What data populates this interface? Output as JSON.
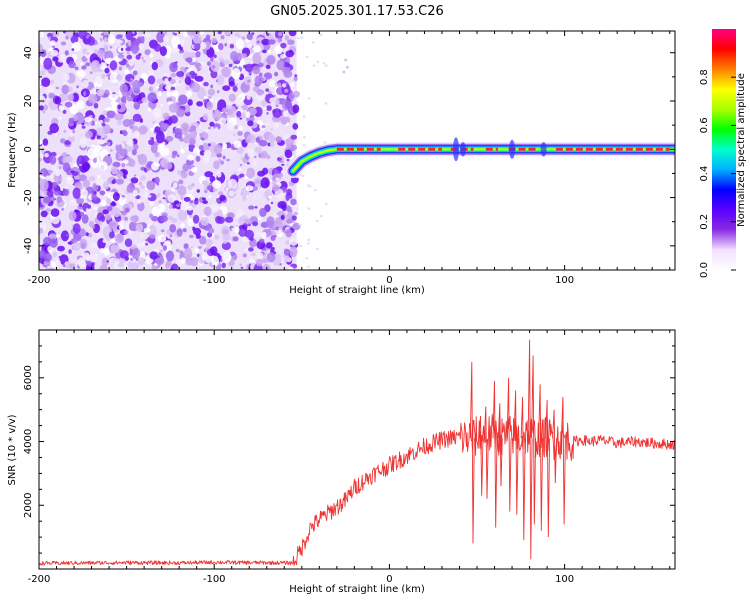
{
  "title": "GN05.2025.301.17.53.C26",
  "chart_data": [
    {
      "type": "heatmap",
      "name": "spectrogram",
      "xlabel": "Height of straight line (km)",
      "ylabel": "Frequency (Hz)",
      "xlim": [
        -200,
        163
      ],
      "ylim": [
        -50,
        49
      ],
      "x_ticks": [
        -200,
        -100,
        0,
        100
      ],
      "y_ticks": [
        -40,
        -20,
        0,
        20,
        40
      ],
      "noise_region": {
        "x": [
          -200,
          -53
        ]
      },
      "signal_track": {
        "x": [
          -55,
          -50,
          -45,
          -40,
          -35,
          -30,
          -20,
          -10,
          0,
          20,
          40,
          60,
          80,
          100,
          120,
          140,
          163
        ],
        "freq": [
          -9,
          -5,
          -3,
          -1.5,
          -0.5,
          0,
          0,
          0,
          0,
          0,
          0,
          0,
          0,
          0,
          0,
          0,
          0
        ]
      },
      "colorbar": {
        "label": "Normalized spectral amplitude",
        "ticks": [
          0.0,
          0.2,
          0.4,
          0.6,
          0.8
        ],
        "tick_labels": [
          "0.0",
          "0.2",
          "0.4",
          "0.6",
          "0.8"
        ],
        "range": [
          0,
          1
        ],
        "colors": [
          "#ffffff",
          "#f2e0ff",
          "#8a2be2",
          "#5a00ff",
          "#0000ff",
          "#00b0ff",
          "#00ffcc",
          "#00ff00",
          "#aaff00",
          "#ffff00",
          "#ff8000",
          "#ff0000",
          "#ff0080"
        ]
      }
    },
    {
      "type": "line",
      "name": "snr",
      "xlabel": "Height of straight line (km)",
      "ylabel": "SNR (10 * v/v)",
      "xlim": [
        -200,
        163
      ],
      "ylim": [
        0,
        7500
      ],
      "x_ticks": [
        -200,
        -100,
        0,
        100
      ],
      "y_ticks": [
        2000,
        4000,
        6000
      ],
      "color": "#ee3333",
      "series": [
        {
          "name": "SNR",
          "x": [
            -200,
            -150,
            -120,
            -100,
            -80,
            -55,
            -50,
            -45,
            -40,
            -35,
            -30,
            -25,
            -20,
            -15,
            -10,
            -5,
            0,
            5,
            10,
            15,
            20,
            25,
            30,
            35,
            40,
            45,
            50,
            55,
            60,
            65,
            70,
            75,
            80,
            85,
            90,
            95,
            100,
            105,
            110,
            115,
            120,
            130,
            140,
            150,
            163
          ],
          "values": [
            180,
            200,
            190,
            210,
            200,
            190,
            650,
            1300,
            1550,
            1750,
            1950,
            2150,
            2550,
            2750,
            2950,
            3100,
            3250,
            3400,
            3550,
            3700,
            3850,
            3950,
            4050,
            4100,
            4150,
            4100,
            4150,
            4200,
            4250,
            4150,
            4200,
            4100,
            4250,
            4100,
            4150,
            4050,
            4100,
            4000,
            4050,
            4000,
            4050,
            3950,
            4000,
            3950,
            3900
          ]
        }
      ],
      "spikes": [
        {
          "x": 47,
          "high": 6500,
          "low": 800
        },
        {
          "x": 52,
          "high": 4800,
          "low": 2300
        },
        {
          "x": 55,
          "high": 5100,
          "low": 2200
        },
        {
          "x": 60,
          "high": 5900,
          "low": 1300
        },
        {
          "x": 63,
          "high": 5200,
          "low": 2600
        },
        {
          "x": 68,
          "high": 6000,
          "low": 1800
        },
        {
          "x": 72,
          "high": 5600,
          "low": 1700
        },
        {
          "x": 76,
          "high": 5400,
          "low": 900
        },
        {
          "x": 80,
          "high": 7200,
          "low": 300
        },
        {
          "x": 82,
          "high": 6700,
          "low": 1400
        },
        {
          "x": 86,
          "high": 5800,
          "low": 1200
        },
        {
          "x": 90,
          "high": 5300,
          "low": 1000
        },
        {
          "x": 94,
          "high": 5000,
          "low": 2700
        },
        {
          "x": 99,
          "high": 5400,
          "low": 1400
        }
      ]
    }
  ]
}
